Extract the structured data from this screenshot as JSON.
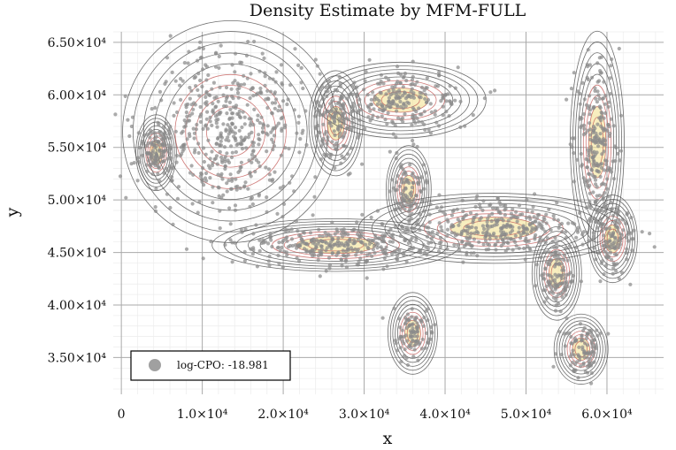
{
  "chart_data": {
    "type": "scatter",
    "title": "Density Estimate by MFM-FULL",
    "xlabel": "x",
    "ylabel": "y",
    "xlim": [
      -1000,
      67000
    ],
    "ylim": [
      31500,
      66000
    ],
    "grid": true,
    "x_ticks": [
      {
        "value": 0,
        "label": "0"
      },
      {
        "value": 10000,
        "label": "1.0×10⁴"
      },
      {
        "value": 20000,
        "label": "2.0×10⁴"
      },
      {
        "value": 30000,
        "label": "3.0×10⁴"
      },
      {
        "value": 40000,
        "label": "4.0×10⁴"
      },
      {
        "value": 50000,
        "label": "5.0×10⁴"
      },
      {
        "value": 60000,
        "label": "6.0×10⁴"
      }
    ],
    "y_ticks": [
      {
        "value": 35000,
        "label": "3.50×10⁴"
      },
      {
        "value": 40000,
        "label": "4.00×10⁴"
      },
      {
        "value": 45000,
        "label": "4.50×10⁴"
      },
      {
        "value": 50000,
        "label": "5.00×10⁴"
      },
      {
        "value": 55000,
        "label": "5.50×10⁴"
      },
      {
        "value": 60000,
        "label": "6.00×10⁴"
      },
      {
        "value": 65000,
        "label": "6.50×10⁴"
      }
    ],
    "legend": {
      "label": "log-CPO: -18.981",
      "placement": "bottom-left"
    },
    "point_color": "#8a8a8a",
    "contour_color_outer": "#4a4a4a",
    "contour_color_inner": "#c0504d",
    "density_peak_color": "#f2e08a",
    "clusters": [
      {
        "name": "c1",
        "cx": 4300,
        "cy": 54500,
        "sx": 900,
        "sy": 1300,
        "n": 110,
        "peak": true
      },
      {
        "name": "c2",
        "cx": 13500,
        "cy": 56500,
        "sx": 4800,
        "sy": 3800,
        "n": 520,
        "peak": false
      },
      {
        "name": "c3",
        "cx": 26500,
        "cy": 57300,
        "sx": 1200,
        "sy": 1800,
        "n": 130,
        "peak": true
      },
      {
        "name": "c4",
        "cx": 34500,
        "cy": 59500,
        "sx": 3800,
        "sy": 1300,
        "n": 230,
        "peak": true
      },
      {
        "name": "c5",
        "cx": 35500,
        "cy": 51000,
        "sx": 1000,
        "sy": 1500,
        "n": 95,
        "peak": true
      },
      {
        "name": "c6",
        "cx": 26500,
        "cy": 45700,
        "sx": 5500,
        "sy": 900,
        "n": 300,
        "peak": true
      },
      {
        "name": "c7",
        "cx": 46000,
        "cy": 47300,
        "sx": 6000,
        "sy": 1200,
        "n": 360,
        "peak": true
      },
      {
        "name": "c8",
        "cx": 36000,
        "cy": 37300,
        "sx": 1100,
        "sy": 1400,
        "n": 100,
        "peak": true
      },
      {
        "name": "c9",
        "cx": 53800,
        "cy": 43000,
        "sx": 1100,
        "sy": 1600,
        "n": 110,
        "peak": true
      },
      {
        "name": "c10",
        "cx": 56800,
        "cy": 35800,
        "sx": 1200,
        "sy": 1200,
        "n": 100,
        "peak": true
      },
      {
        "name": "c11",
        "cx": 58800,
        "cy": 55500,
        "sx": 1200,
        "sy": 3800,
        "n": 240,
        "peak": true
      },
      {
        "name": "c12",
        "cx": 60700,
        "cy": 46300,
        "sx": 1100,
        "sy": 1500,
        "n": 110,
        "peak": true
      }
    ]
  }
}
